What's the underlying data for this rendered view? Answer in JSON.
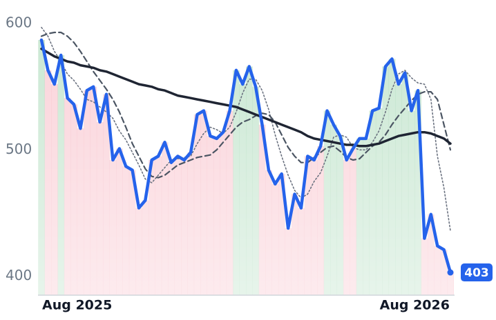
{
  "chart_data": {
    "type": "line",
    "categories": [
      "Aug 2025",
      null,
      null,
      null,
      null,
      null,
      null,
      null,
      null,
      null,
      null,
      null,
      null,
      null,
      null,
      null,
      null,
      null,
      null,
      null,
      null,
      null,
      null,
      null,
      null,
      null,
      null,
      null,
      null,
      null,
      null,
      null,
      null,
      null,
      null,
      null,
      null,
      null,
      null,
      null,
      null,
      null,
      null,
      null,
      null,
      null,
      null,
      null,
      null,
      null,
      null,
      null,
      "Aug 2026",
      null,
      null,
      null,
      null,
      null,
      null,
      null,
      null,
      null,
      null,
      null
    ],
    "series": [
      {
        "color": "#2563eb",
        "line_style": "solid",
        "values": [
          587,
          563,
          552,
          575,
          541,
          536,
          517,
          547,
          550,
          522,
          544,
          492,
          501,
          487,
          484,
          454,
          460,
          492,
          495,
          506,
          490,
          495,
          492,
          498,
          528,
          531,
          511,
          509,
          514,
          531,
          563,
          552,
          566,
          550,
          520,
          484,
          473,
          481,
          438,
          465,
          454,
          495,
          492,
          503,
          531,
          520,
          511,
          492,
          501,
          509,
          509,
          531,
          533,
          566,
          572,
          552,
          561,
          531,
          547,
          430,
          449,
          424,
          421,
          403
        ]
      },
      {
        "color": "#1f2533",
        "line_style": "thick",
        "values": [
          580,
          577,
          574,
          572,
          570,
          569,
          567,
          566,
          565,
          563,
          562,
          560,
          558,
          556,
          554,
          552,
          551,
          550,
          548,
          547,
          545,
          543,
          542,
          541,
          540,
          539,
          538,
          537,
          536,
          535,
          534,
          532,
          530,
          528,
          526,
          524,
          522,
          520,
          518,
          516,
          514,
          511,
          509,
          508,
          507,
          506,
          505,
          504,
          504,
          503,
          503,
          504,
          505,
          507,
          509,
          511,
          512,
          513,
          514,
          514,
          513,
          511,
          509,
          505
        ]
      },
      {
        "color": "#4b5563",
        "line_style": "dashed",
        "values": [
          590,
          592,
          593,
          593,
          590,
          585,
          578,
          570,
          562,
          555,
          548,
          540,
          530,
          518,
          505,
          495,
          485,
          479,
          478,
          480,
          484,
          488,
          490,
          492,
          494,
          495,
          496,
          500,
          506,
          512,
          518,
          522,
          524,
          527,
          529,
          528,
          522,
          512,
          502,
          495,
          490,
          490,
          494,
          498,
          502,
          503,
          499,
          494,
          492,
          493,
          498,
          503,
          506,
          512,
          520,
          527,
          533,
          539,
          544,
          546,
          546,
          540,
          520,
          500
        ]
      },
      {
        "color": "#6b7280",
        "line_style": "dotted",
        "values": [
          597,
          590,
          578,
          570,
          560,
          555,
          548,
          540,
          538,
          534,
          530,
          525,
          515,
          508,
          498,
          488,
          477,
          474,
          480,
          486,
          492,
          493,
          494,
          495,
          505,
          513,
          518,
          516,
          513,
          518,
          530,
          545,
          556,
          556,
          547,
          532,
          512,
          495,
          480,
          468,
          462,
          465,
          475,
          482,
          495,
          510,
          512,
          510,
          502,
          500,
          500,
          506,
          515,
          530,
          548,
          560,
          563,
          557,
          553,
          552,
          540,
          495,
          470,
          436
        ]
      }
    ],
    "band_colors": {
      "up": "#3daa5c",
      "down": "#f06a82"
    },
    "ylim": [
      385,
      605
    ],
    "yticks": [
      400,
      500,
      600
    ]
  }
}
